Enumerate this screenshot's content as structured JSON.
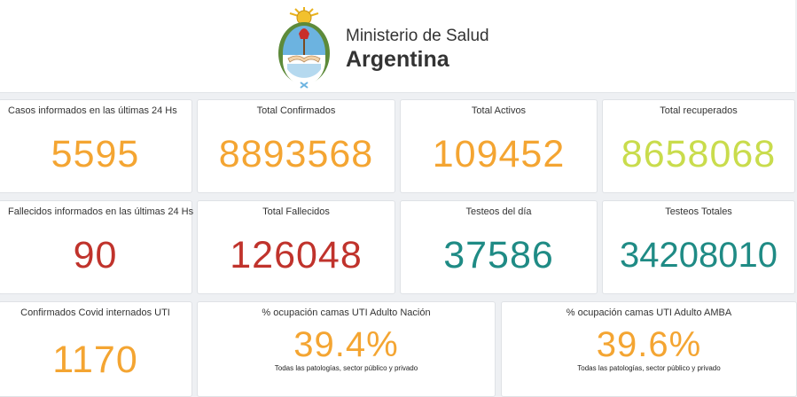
{
  "header": {
    "ministry": "Ministerio de Salud",
    "country": "Argentina",
    "logo_icon": "coat-of-arms-argentina"
  },
  "colors": {
    "orange": "#f4a532",
    "green_yellow": "#c9dc4c",
    "dark_red": "#c0332c",
    "teal": "#1f8b85"
  },
  "cards": {
    "casos_24h": {
      "title": "Casos informados en las últimas 24 Hs",
      "value": "5595"
    },
    "total_confirmados": {
      "title": "Total Confirmados",
      "value": "8893568"
    },
    "total_activos": {
      "title": "Total Activos",
      "value": "109452"
    },
    "total_recuperados": {
      "title": "Total recuperados",
      "value": "8658068"
    },
    "fallecidos_ultimas": {
      "title": "Fallecidos informados en las últimas 24 Hs",
      "value": "90"
    },
    "total_fallecidos": {
      "title": "Total Fallecidos",
      "value": "126048"
    },
    "testeos_dia": {
      "title": "Testeos del día",
      "value": "37586"
    },
    "testeos_totales": {
      "title": "Testeos Totales",
      "value": "34208010"
    },
    "internados_uti": {
      "title": "Confirmados Covid internados UTI",
      "value": "1170"
    },
    "ocupacion_nacion": {
      "title": "% ocupación camas UTI Adulto Nación",
      "value": "39.4%",
      "note": "Todas las patologías, sector público y privado"
    },
    "ocupacion_amba": {
      "title": "% ocupación camas UTI Adulto AMBA",
      "value": "39.6%",
      "note": "Todas las patologías, sector público y privado"
    }
  }
}
